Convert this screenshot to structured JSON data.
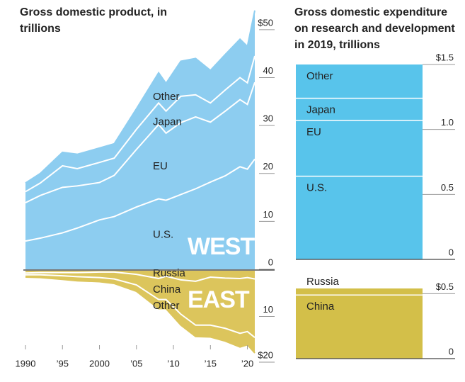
{
  "chart_data": [
    {
      "type": "area",
      "title": "Gross domestic product, in trillions",
      "annotation": "WEST",
      "x": [
        1990,
        1992,
        1995,
        1997,
        2000,
        2002,
        2005,
        2008,
        2009,
        2011,
        2013,
        2015,
        2017,
        2019,
        2020,
        2021
      ],
      "xlim": [
        1990,
        2021
      ],
      "series": [
        {
          "name": "U.S.",
          "color": "#8dcdf0",
          "values": [
            5.9,
            6.5,
            7.6,
            8.6,
            10.3,
            11.0,
            13.0,
            14.7,
            14.4,
            15.6,
            16.8,
            18.2,
            19.5,
            21.4,
            20.9,
            23.0
          ]
        },
        {
          "name": "EU",
          "color": "#8dcdf0",
          "values": [
            8.0,
            8.9,
            9.5,
            8.8,
            7.8,
            8.6,
            12.0,
            15.5,
            14.0,
            15.0,
            15.0,
            12.5,
            13.5,
            14.0,
            13.5,
            16.0
          ]
        },
        {
          "name": "Japan",
          "color": "#8dcdf0",
          "values": [
            2.3,
            2.6,
            4.5,
            3.6,
            4.2,
            3.6,
            4.2,
            4.5,
            4.6,
            5.5,
            4.6,
            4.0,
            4.4,
            4.6,
            4.5,
            5.5
          ]
        },
        {
          "name": "Other",
          "color": "#8dcdf0",
          "values": [
            1.8,
            2.0,
            2.8,
            3.0,
            3.0,
            3.0,
            4.3,
            6.3,
            5.8,
            7.3,
            7.6,
            6.8,
            7.4,
            8.0,
            7.6,
            9.5
          ]
        }
      ],
      "ylim": [
        0,
        55
      ],
      "yticks": [
        0,
        10,
        20,
        30,
        40,
        {
          "value": 50,
          "label": "$50"
        }
      ]
    },
    {
      "type": "area",
      "inverted": true,
      "annotation": "EAST",
      "x": [
        1990,
        1992,
        1995,
        1997,
        2000,
        2002,
        2005,
        2008,
        2009,
        2011,
        2013,
        2015,
        2017,
        2019,
        2020,
        2021
      ],
      "xlim": [
        1990,
        2021
      ],
      "xticks": [
        1990,
        {
          "value": 1995,
          "label": "’95"
        },
        2000,
        {
          "value": 2005,
          "label": "’05"
        },
        {
          "value": 2010,
          "label": "’10"
        },
        {
          "value": 2015,
          "label": "’15"
        },
        {
          "value": 2020,
          "label": "’20"
        }
      ],
      "series": [
        {
          "name": "Russia",
          "color": "#dcc55c",
          "values": [
            0.5,
            0.4,
            0.4,
            0.4,
            0.3,
            0.3,
            0.8,
            1.7,
            1.2,
            2.0,
            2.3,
            1.4,
            1.6,
            1.7,
            1.5,
            1.8
          ]
        },
        {
          "name": "China",
          "color": "#dcc55c",
          "values": [
            0.4,
            0.5,
            0.7,
            0.9,
            1.2,
            1.5,
            2.3,
            4.6,
            5.1,
            7.5,
            9.6,
            10.5,
            11.0,
            12.0,
            11.8,
            12.8
          ]
        },
        {
          "name": "Other",
          "color": "#dcc55c",
          "values": [
            0.5,
            0.6,
            0.8,
            0.9,
            0.9,
            1.0,
            1.4,
            2.0,
            2.0,
            2.4,
            2.5,
            2.6,
            2.8,
            3.0,
            2.9,
            3.4
          ]
        }
      ],
      "ylim": [
        0,
        20
      ],
      "yticks": [
        10,
        {
          "value": 20,
          "label": "$20"
        }
      ]
    },
    {
      "type": "bar",
      "title": "Gross domestic expenditure on research and development in 2019, trillions",
      "series": [
        {
          "name": "U.S.",
          "color": "#58c4eb",
          "values": [
            0.64
          ]
        },
        {
          "name": "EU",
          "color": "#58c4eb",
          "values": [
            0.43
          ]
        },
        {
          "name": "Japan",
          "color": "#58c4eb",
          "values": [
            0.17
          ]
        },
        {
          "name": "Other",
          "color": "#58c4eb",
          "values": [
            0.26
          ]
        }
      ],
      "ylim": [
        0,
        1.5
      ],
      "yticks": [
        0,
        0.5,
        {
          "value": 1,
          "label": "1.0"
        },
        {
          "value": 1.5,
          "label": "$1.5"
        }
      ]
    },
    {
      "type": "bar",
      "series": [
        {
          "name": "China",
          "color": "#d3bf49",
          "values": [
            0.49
          ]
        },
        {
          "name": "Russia",
          "color": "#d3bf49",
          "values": [
            0.05
          ]
        }
      ],
      "ylim": [
        0,
        0.55
      ],
      "yticks": [
        0,
        {
          "value": 0.5,
          "label": "$0.5"
        }
      ]
    }
  ]
}
